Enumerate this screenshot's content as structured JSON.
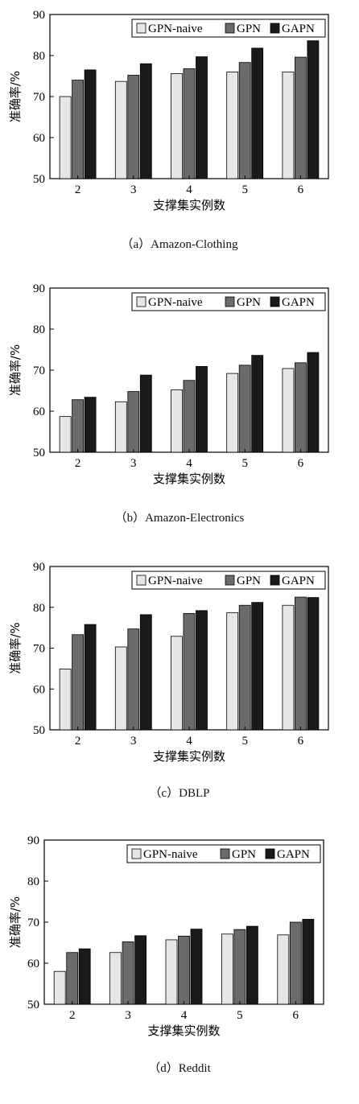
{
  "chart_data": [
    {
      "type": "bar",
      "caption": "（a）Amazon-Clothing",
      "xlabel": "支撑集实例数",
      "ylabel": "准确率/%",
      "categories": [
        "2",
        "3",
        "4",
        "5",
        "6"
      ],
      "ylim": [
        50,
        90
      ],
      "yticks": [
        "50",
        "60",
        "70",
        "80",
        "90"
      ],
      "legend_position": "top-right",
      "series": [
        {
          "name": "GPN-naive",
          "color": "#e6e6e6",
          "values": [
            70.0,
            73.7,
            75.6,
            76.0,
            76.0
          ]
        },
        {
          "name": "GPN",
          "color": "#6b6b6b",
          "values": [
            74.0,
            75.2,
            76.8,
            78.3,
            79.6
          ]
        },
        {
          "name": "GAPN",
          "color": "#1a1a1a",
          "values": [
            76.5,
            78.0,
            79.7,
            81.8,
            83.6
          ]
        }
      ]
    },
    {
      "type": "bar",
      "caption": "（b）Amazon-Electronics",
      "xlabel": "支撑集实例数",
      "ylabel": "准确率/%",
      "categories": [
        "2",
        "3",
        "4",
        "5",
        "6"
      ],
      "ylim": [
        50,
        90
      ],
      "yticks": [
        "50",
        "60",
        "70",
        "80",
        "90"
      ],
      "legend_position": "top-right",
      "series": [
        {
          "name": "GPN-naive",
          "color": "#e6e6e6",
          "values": [
            58.7,
            62.3,
            65.2,
            69.2,
            70.4
          ]
        },
        {
          "name": "GPN",
          "color": "#6b6b6b",
          "values": [
            62.8,
            64.8,
            67.5,
            71.2,
            71.8
          ]
        },
        {
          "name": "GAPN",
          "color": "#1a1a1a",
          "values": [
            63.4,
            68.8,
            70.9,
            73.6,
            74.3
          ]
        }
      ]
    },
    {
      "type": "bar",
      "caption": "（c）DBLP",
      "xlabel": "支撑集实例数",
      "ylabel": "准确率/%",
      "categories": [
        "2",
        "3",
        "4",
        "5",
        "6"
      ],
      "ylim": [
        50,
        90
      ],
      "yticks": [
        "50",
        "60",
        "70",
        "80",
        "90"
      ],
      "legend_position": "top-right",
      "series": [
        {
          "name": "GPN-naive",
          "color": "#e6e6e6",
          "values": [
            64.9,
            70.3,
            72.9,
            78.7,
            80.5
          ]
        },
        {
          "name": "GPN",
          "color": "#6b6b6b",
          "values": [
            73.3,
            74.7,
            78.5,
            80.5,
            82.5
          ]
        },
        {
          "name": "GAPN",
          "color": "#1a1a1a",
          "values": [
            75.8,
            78.2,
            79.2,
            81.2,
            82.4
          ]
        }
      ]
    },
    {
      "type": "bar",
      "caption": "（d）Reddit",
      "xlabel": "支撑集实例数",
      "ylabel": "准确率/%",
      "categories": [
        "2",
        "3",
        "4",
        "5",
        "6"
      ],
      "ylim": [
        50,
        90
      ],
      "yticks": [
        "50",
        "60",
        "70",
        "80",
        "90"
      ],
      "legend_position": "top-right",
      "series": [
        {
          "name": "GPN-naive",
          "color": "#e6e6e6",
          "values": [
            58.0,
            62.6,
            65.7,
            67.1,
            66.9
          ]
        },
        {
          "name": "GPN",
          "color": "#6b6b6b",
          "values": [
            62.6,
            65.2,
            66.6,
            68.2,
            70.0
          ]
        },
        {
          "name": "GAPN",
          "color": "#1a1a1a",
          "values": [
            63.5,
            66.7,
            68.3,
            69.0,
            70.7
          ]
        }
      ]
    }
  ]
}
